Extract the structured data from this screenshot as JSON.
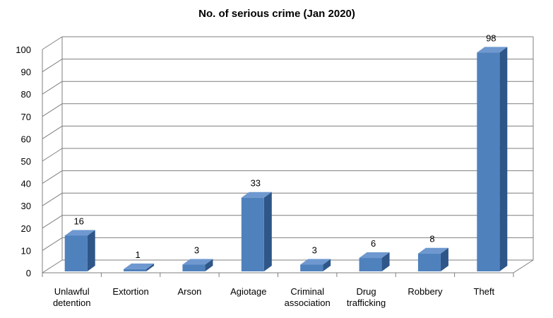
{
  "chart_data": {
    "type": "bar",
    "title": "No. of serious crime (Jan 2020)",
    "xlabel": "",
    "ylabel": "",
    "ylim": [
      0,
      100
    ],
    "yticks": [
      0,
      10,
      20,
      30,
      40,
      50,
      60,
      70,
      80,
      90,
      100
    ],
    "grid": true,
    "legend": "none",
    "categories": [
      [
        "Unlawful",
        "detention"
      ],
      [
        "Extortion"
      ],
      [
        "Arson"
      ],
      [
        "Agiotage"
      ],
      [
        "Criminal",
        "association"
      ],
      [
        "Drug",
        "trafficking"
      ],
      [
        "Robbery"
      ],
      [
        "Theft"
      ]
    ],
    "values": [
      16,
      1,
      3,
      33,
      3,
      6,
      8,
      98
    ],
    "data_labels": [
      "16",
      "1",
      "3",
      "33",
      "3",
      "6",
      "8",
      "98"
    ],
    "colors": {
      "bar_front": "#4F81BD",
      "bar_side": "#2F5688",
      "bar_top": "#6E98CF",
      "grid": "#7f7f7f"
    }
  }
}
